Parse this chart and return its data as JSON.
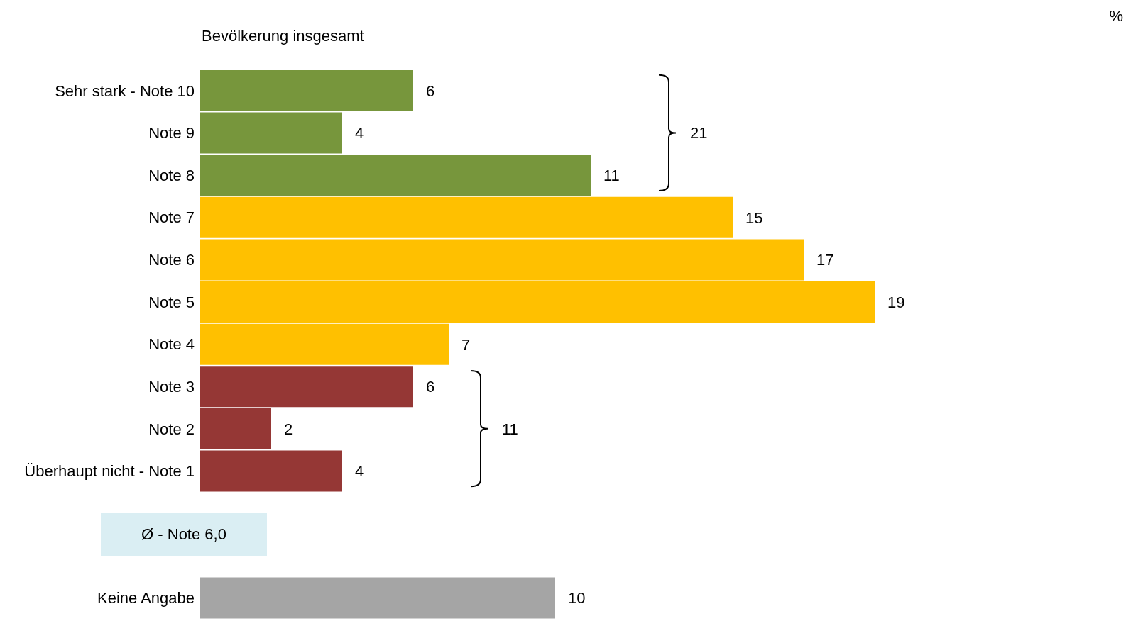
{
  "chart_data": {
    "type": "bar",
    "orientation": "horizontal",
    "title": "Bevölkerung insgesamt",
    "categories": [
      "Sehr stark - Note 10",
      "Note 9",
      "Note 8",
      "Note 7",
      "Note 6",
      "Note 5",
      "Note 4",
      "Note 3",
      "Note 2",
      "Überhaupt nicht - Note 1",
      null,
      null,
      "Keine Angabe"
    ],
    "values": [
      6,
      4,
      11,
      15,
      17,
      19,
      7,
      6,
      2,
      4,
      null,
      null,
      10
    ],
    "colors": [
      "#77963c",
      "#77963c",
      "#77963c",
      "#ffc000",
      "#ffc000",
      "#ffc000",
      "#ffc000",
      "#953735",
      "#953735",
      "#953735",
      "#a5a5a5",
      "#a5a5a5",
      "#a5a5a5"
    ],
    "data_labels": true,
    "tick_labels": "y",
    "annotations": [
      "%",
      "21",
      "11",
      "Ø - Note 6,0"
    ]
  }
}
